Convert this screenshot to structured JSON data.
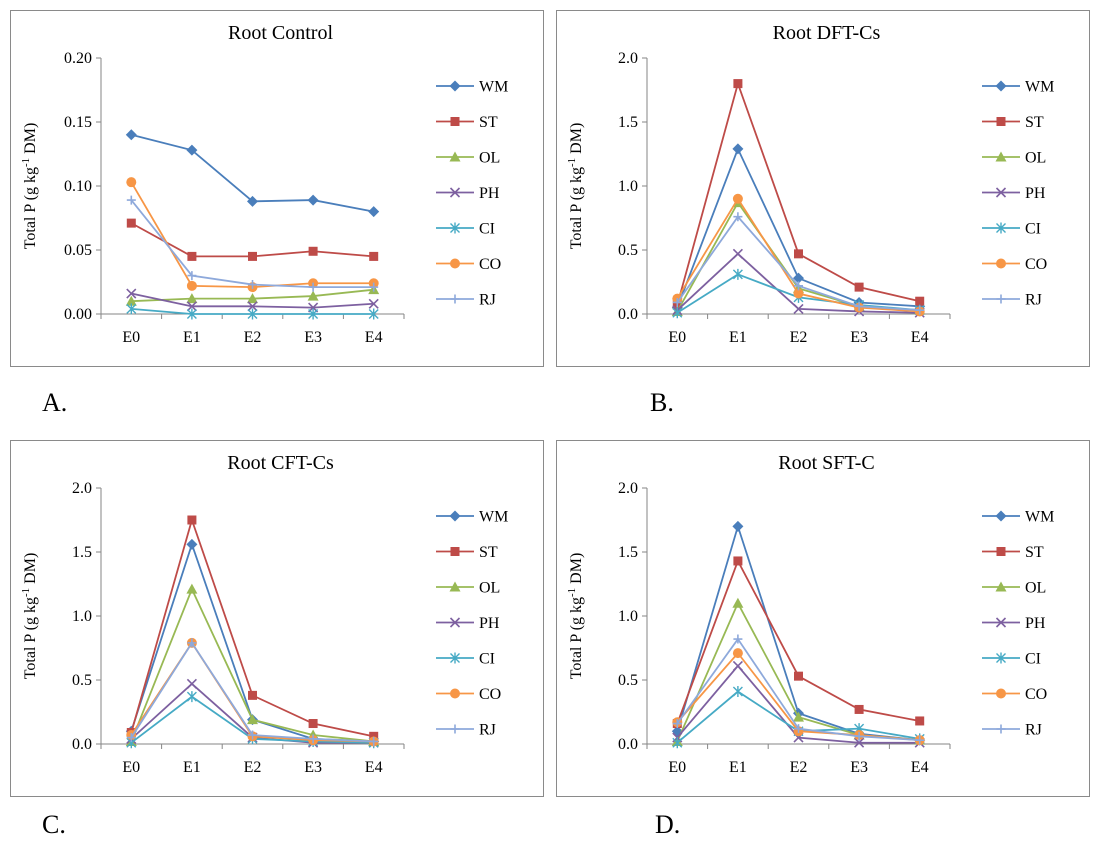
{
  "colors": {
    "WM": "#4a7ebb",
    "ST": "#be4b48",
    "OL": "#98b954",
    "PH": "#7d60a0",
    "CI": "#46aac5",
    "CO": "#f79646",
    "RJ": "#8ea9db"
  },
  "markers": {
    "WM": "diamond",
    "ST": "square",
    "OL": "triangle",
    "PH": "x",
    "CI": "asterisk",
    "CO": "circle",
    "RJ": "plus"
  },
  "chart_data": [
    {
      "id": "A",
      "letter": "A.",
      "type": "line",
      "title": "Root Control",
      "ylabel": "Total P (g kg-1 DM)",
      "categories": [
        "E0",
        "E1",
        "E2",
        "E3",
        "E4"
      ],
      "ylim": [
        0,
        0.2
      ],
      "yticks": [
        "0.00",
        "0.05",
        "0.10",
        "0.15",
        "0.20"
      ],
      "legend": "right",
      "grid": false,
      "series": [
        {
          "name": "WM",
          "values": [
            0.14,
            0.128,
            0.088,
            0.089,
            0.08
          ]
        },
        {
          "name": "ST",
          "values": [
            0.071,
            0.045,
            0.045,
            0.049,
            0.045
          ]
        },
        {
          "name": "OL",
          "values": [
            0.01,
            0.012,
            0.012,
            0.014,
            0.019
          ]
        },
        {
          "name": "PH",
          "values": [
            0.016,
            0.006,
            0.006,
            0.005,
            0.008
          ]
        },
        {
          "name": "CI",
          "values": [
            0.004,
            0.0,
            0.0,
            0.0,
            0.0
          ]
        },
        {
          "name": "CO",
          "values": [
            0.103,
            0.022,
            0.021,
            0.024,
            0.024
          ]
        },
        {
          "name": "RJ",
          "values": [
            0.089,
            0.03,
            0.023,
            0.021,
            0.021
          ]
        }
      ]
    },
    {
      "id": "B",
      "letter": "B.",
      "type": "line",
      "title": "Root DFT-Cs",
      "ylabel": "Total P (g kg-1 DM)",
      "categories": [
        "E0",
        "E1",
        "E2",
        "E3",
        "E4"
      ],
      "ylim": [
        0,
        2.0
      ],
      "yticks": [
        "0.0",
        "0.5",
        "1.0",
        "1.5",
        "2.0"
      ],
      "legend": "right",
      "grid": false,
      "series": [
        {
          "name": "WM",
          "values": [
            0.05,
            1.29,
            0.28,
            0.09,
            0.06
          ]
        },
        {
          "name": "ST",
          "values": [
            0.07,
            1.8,
            0.47,
            0.21,
            0.1
          ]
        },
        {
          "name": "OL",
          "values": [
            0.02,
            0.87,
            0.2,
            0.06,
            0.03
          ]
        },
        {
          "name": "PH",
          "values": [
            0.03,
            0.47,
            0.04,
            0.02,
            0.01
          ]
        },
        {
          "name": "CI",
          "values": [
            0.01,
            0.31,
            0.13,
            0.07,
            0.03
          ]
        },
        {
          "name": "CO",
          "values": [
            0.12,
            0.9,
            0.16,
            0.05,
            0.02
          ]
        },
        {
          "name": "RJ",
          "values": [
            0.09,
            0.76,
            0.22,
            0.06,
            0.03
          ]
        }
      ]
    },
    {
      "id": "C",
      "letter": "C.",
      "type": "line",
      "title": "Root CFT-Cs",
      "ylabel": "Total P (g kg-1 DM)",
      "categories": [
        "E0",
        "E1",
        "E2",
        "E3",
        "E4"
      ],
      "ylim": [
        0,
        2.0
      ],
      "yticks": [
        "0.0",
        "0.5",
        "1.0",
        "1.5",
        "2.0"
      ],
      "legend": "right",
      "grid": false,
      "series": [
        {
          "name": "WM",
          "values": [
            0.1,
            1.56,
            0.19,
            0.04,
            0.02
          ]
        },
        {
          "name": "ST",
          "values": [
            0.09,
            1.75,
            0.38,
            0.16,
            0.06
          ]
        },
        {
          "name": "OL",
          "values": [
            0.02,
            1.21,
            0.19,
            0.07,
            0.02
          ]
        },
        {
          "name": "PH",
          "values": [
            0.04,
            0.47,
            0.05,
            0.01,
            0.01
          ]
        },
        {
          "name": "CI",
          "values": [
            0.01,
            0.37,
            0.04,
            0.02,
            0.01
          ]
        },
        {
          "name": "CO",
          "values": [
            0.07,
            0.79,
            0.06,
            0.03,
            0.02
          ]
        },
        {
          "name": "RJ",
          "values": [
            0.05,
            0.79,
            0.07,
            0.04,
            0.02
          ]
        }
      ]
    },
    {
      "id": "D",
      "letter": "D.",
      "type": "line",
      "title": "Root SFT-C",
      "ylabel": "Total P (g kg-1 DM)",
      "categories": [
        "E0",
        "E1",
        "E2",
        "E3",
        "E4"
      ],
      "ylim": [
        0,
        2.0
      ],
      "yticks": [
        "0.0",
        "0.5",
        "1.0",
        "1.5",
        "2.0"
      ],
      "legend": "right",
      "grid": false,
      "series": [
        {
          "name": "WM",
          "values": [
            0.1,
            1.7,
            0.24,
            0.08,
            0.03
          ]
        },
        {
          "name": "ST",
          "values": [
            0.16,
            1.43,
            0.53,
            0.27,
            0.18
          ]
        },
        {
          "name": "OL",
          "values": [
            0.02,
            1.1,
            0.21,
            0.07,
            0.03
          ]
        },
        {
          "name": "PH",
          "values": [
            0.05,
            0.61,
            0.05,
            0.01,
            0.01
          ]
        },
        {
          "name": "CI",
          "values": [
            0.01,
            0.41,
            0.1,
            0.12,
            0.04
          ]
        },
        {
          "name": "CO",
          "values": [
            0.17,
            0.71,
            0.1,
            0.07,
            0.03
          ]
        },
        {
          "name": "RJ",
          "values": [
            0.16,
            0.82,
            0.12,
            0.06,
            0.03
          ]
        }
      ]
    }
  ]
}
